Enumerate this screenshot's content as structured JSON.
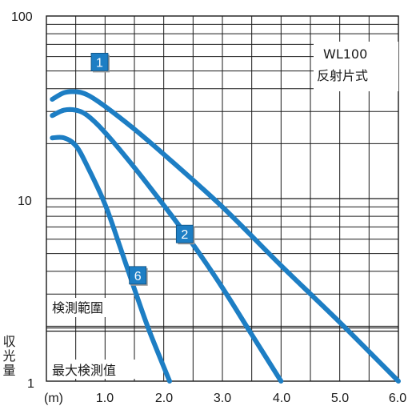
{
  "chart_data": {
    "type": "line",
    "title": "",
    "xlabel": "",
    "ylabel": "収光量",
    "x_unit": "(m)",
    "y_scale": "log",
    "xlim": [
      0,
      6.0
    ],
    "ylim": [
      1,
      100
    ],
    "x_tick_labels": [
      "1.0",
      "2.0",
      "3.0",
      "4.0",
      "5.0",
      "6.0"
    ],
    "y_tick_labels": [
      "1",
      "10",
      "100"
    ],
    "grid": true,
    "series": [
      {
        "name": "1",
        "color": "#1d7ec4",
        "points": [
          {
            "x": 0.1,
            "y": 35
          },
          {
            "x": 0.3,
            "y": 38
          },
          {
            "x": 0.5,
            "y": 38.5
          },
          {
            "x": 0.7,
            "y": 37
          },
          {
            "x": 1.0,
            "y": 32
          },
          {
            "x": 1.5,
            "y": 24
          },
          {
            "x": 2.0,
            "y": 17.5
          },
          {
            "x": 3.0,
            "y": 9
          },
          {
            "x": 4.0,
            "y": 4.3
          },
          {
            "x": 5.0,
            "y": 2.1
          },
          {
            "x": 6.0,
            "y": 1.0
          }
        ]
      },
      {
        "name": "2",
        "color": "#1d7ec4",
        "points": [
          {
            "x": 0.1,
            "y": 28.5
          },
          {
            "x": 0.3,
            "y": 30.5
          },
          {
            "x": 0.5,
            "y": 30.5
          },
          {
            "x": 0.7,
            "y": 28.5
          },
          {
            "x": 1.0,
            "y": 23
          },
          {
            "x": 1.5,
            "y": 14.8
          },
          {
            "x": 2.0,
            "y": 9.2
          },
          {
            "x": 2.5,
            "y": 5.6
          },
          {
            "x": 3.0,
            "y": 3.25
          },
          {
            "x": 3.5,
            "y": 1.8
          },
          {
            "x": 4.0,
            "y": 1.0
          }
        ]
      },
      {
        "name": "6",
        "color": "#1d7ec4",
        "points": [
          {
            "x": 0.1,
            "y": 21.5
          },
          {
            "x": 0.3,
            "y": 21.5
          },
          {
            "x": 0.5,
            "y": 19.5
          },
          {
            "x": 0.7,
            "y": 15
          },
          {
            "x": 1.0,
            "y": 9.3
          },
          {
            "x": 1.25,
            "y": 5.5
          },
          {
            "x": 1.5,
            "y": 3.2
          },
          {
            "x": 1.75,
            "y": 1.9
          },
          {
            "x": 2.1,
            "y": 1.0
          }
        ]
      }
    ],
    "annotations": {
      "product": "WL100",
      "type_label": "反射片式",
      "range_label": "検測範圍",
      "max_label": "最大検測值"
    },
    "threshold_y": 2.0
  }
}
